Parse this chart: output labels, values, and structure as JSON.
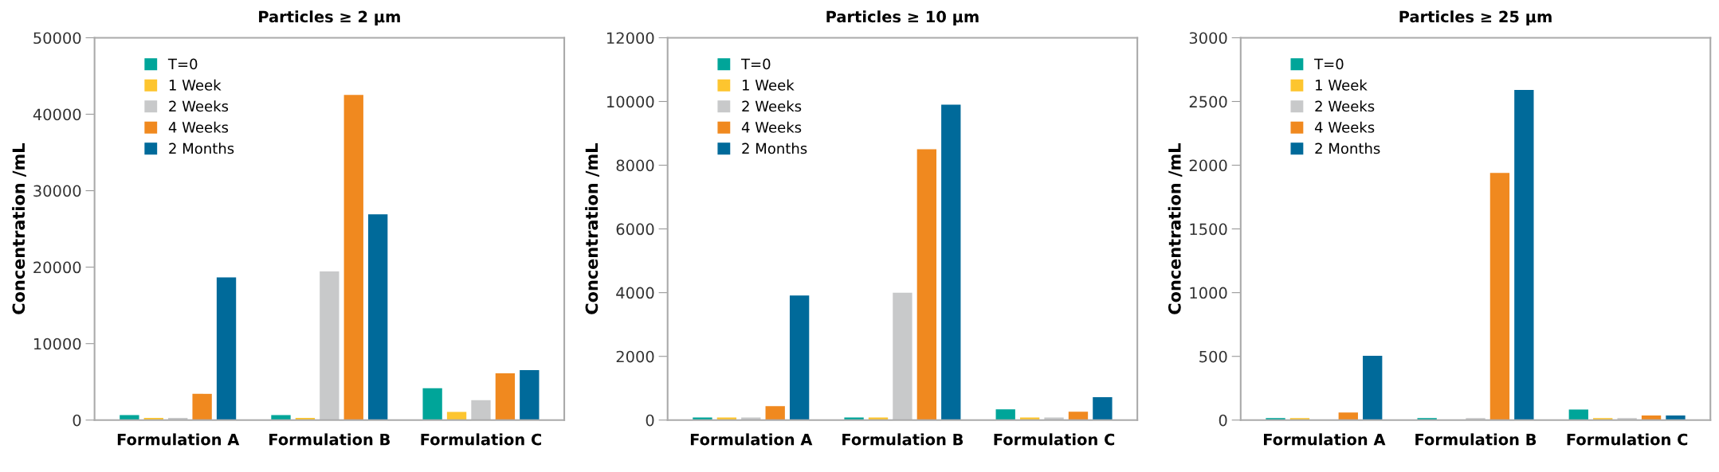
{
  "chart_data": [
    {
      "type": "bar",
      "title": "Particles ≥ 2 µm",
      "ylabel": "Concentration /mL",
      "categories": [
        "Formulation A",
        "Formulation B",
        "Formulation C"
      ],
      "ylim": [
        0,
        50000
      ],
      "yticks": [
        0,
        10000,
        20000,
        30000,
        40000,
        50000
      ],
      "grid": false,
      "legend": "top left",
      "series": [
        {
          "name": "T=0",
          "color": "#00a599",
          "values": [
            650,
            650,
            4170
          ]
        },
        {
          "name": "1 Week",
          "color": "#fdc52f",
          "values": [
            280,
            280,
            1070
          ]
        },
        {
          "name": "2 Weeks",
          "color": "#c8c9ca",
          "values": [
            280,
            19430,
            2600
          ]
        },
        {
          "name": "4 Weeks",
          "color": "#f0891f",
          "values": [
            3430,
            42530,
            6120
          ]
        },
        {
          "name": "2 Months",
          "color": "#006a9a",
          "values": [
            18650,
            26900,
            6540
          ]
        }
      ]
    },
    {
      "type": "bar",
      "title": "Particles ≥ 10 µm",
      "ylabel": "Concentration /mL",
      "categories": [
        "Formulation A",
        "Formulation B",
        "Formulation C"
      ],
      "ylim": [
        0,
        12000
      ],
      "yticks": [
        0,
        2000,
        4000,
        6000,
        8000,
        10000,
        12000
      ],
      "grid": false,
      "legend": "top left",
      "series": [
        {
          "name": "T=0",
          "color": "#00a599",
          "values": [
            80,
            80,
            340
          ]
        },
        {
          "name": "1 Week",
          "color": "#fdc52f",
          "values": [
            80,
            80,
            80
          ]
        },
        {
          "name": "2 Weeks",
          "color": "#c8c9ca",
          "values": [
            80,
            4000,
            80
          ]
        },
        {
          "name": "4 Weeks",
          "color": "#f0891f",
          "values": [
            440,
            8500,
            260
          ]
        },
        {
          "name": "2 Months",
          "color": "#006a9a",
          "values": [
            3910,
            9900,
            720
          ]
        }
      ]
    },
    {
      "type": "bar",
      "title": "Particles ≥ 25 µm",
      "ylabel": "Concentration /mL",
      "categories": [
        "Formulation A",
        "Formulation B",
        "Formulation C"
      ],
      "ylim": [
        0,
        3000
      ],
      "yticks": [
        0,
        500,
        1000,
        1500,
        2000,
        2500,
        3000
      ],
      "grid": false,
      "legend": "top left",
      "series": [
        {
          "name": "T=0",
          "color": "#00a599",
          "values": [
            15,
            15,
            83
          ]
        },
        {
          "name": "1 Week",
          "color": "#fdc52f",
          "values": [
            15,
            0,
            15
          ]
        },
        {
          "name": "2 Weeks",
          "color": "#c8c9ca",
          "values": [
            0,
            15,
            15
          ]
        },
        {
          "name": "4 Weeks",
          "color": "#f0891f",
          "values": [
            60,
            1940,
            36
          ]
        },
        {
          "name": "2 Months",
          "color": "#006a9a",
          "values": [
            505,
            2590,
            36
          ]
        }
      ]
    }
  ]
}
